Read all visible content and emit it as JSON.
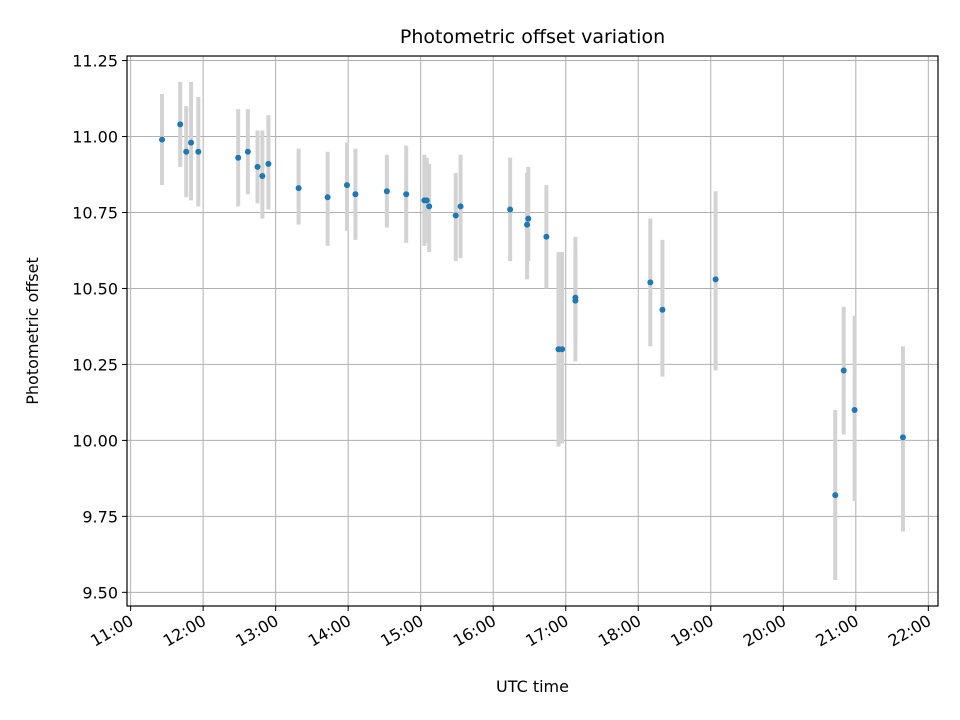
{
  "colors": {
    "point": "#1f77b4",
    "errorbar": "#d3d3d3",
    "grid": "#b0b0b0",
    "axes": "#000000"
  },
  "chart_data": {
    "type": "scatter",
    "title": "Photometric offset variation",
    "xlabel": "UTC time",
    "ylabel": "Photometric offset",
    "xlim": [
      "10:57",
      "22:08"
    ],
    "ylim": [
      9.455,
      11.265
    ],
    "grid": true,
    "xticks": [
      "11:00",
      "12:00",
      "13:00",
      "14:00",
      "15:00",
      "16:00",
      "17:00",
      "18:00",
      "19:00",
      "20:00",
      "21:00",
      "22:00"
    ],
    "yticks": [
      "9.50",
      "9.75",
      "10.00",
      "10.25",
      "10.50",
      "10.75",
      "11.00",
      "11.25"
    ],
    "series": [
      {
        "marker": "dot",
        "error": "vertical gray bars",
        "points": [
          {
            "x": "11:26",
            "y": 10.99,
            "lo": 10.84,
            "hi": 11.14
          },
          {
            "x": "11:41",
            "y": 11.04,
            "lo": 10.9,
            "hi": 11.18
          },
          {
            "x": "11:46",
            "y": 10.95,
            "lo": 10.8,
            "hi": 11.1
          },
          {
            "x": "11:50",
            "y": 10.98,
            "lo": 10.79,
            "hi": 11.18
          },
          {
            "x": "11:56",
            "y": 10.95,
            "lo": 10.77,
            "hi": 11.13
          },
          {
            "x": "12:29",
            "y": 10.93,
            "lo": 10.77,
            "hi": 11.09
          },
          {
            "x": "12:37",
            "y": 10.95,
            "lo": 10.81,
            "hi": 11.09
          },
          {
            "x": "12:45",
            "y": 10.9,
            "lo": 10.78,
            "hi": 11.02
          },
          {
            "x": "12:49",
            "y": 10.87,
            "lo": 10.73,
            "hi": 11.02
          },
          {
            "x": "12:54",
            "y": 10.91,
            "lo": 10.76,
            "hi": 11.07
          },
          {
            "x": "13:19",
            "y": 10.83,
            "lo": 10.71,
            "hi": 10.96
          },
          {
            "x": "13:43",
            "y": 10.8,
            "lo": 10.64,
            "hi": 10.95
          },
          {
            "x": "13:59",
            "y": 10.84,
            "lo": 10.69,
            "hi": 10.98
          },
          {
            "x": "14:06",
            "y": 10.81,
            "lo": 10.66,
            "hi": 10.96
          },
          {
            "x": "14:32",
            "y": 10.82,
            "lo": 10.7,
            "hi": 10.94
          },
          {
            "x": "14:48",
            "y": 10.81,
            "lo": 10.65,
            "hi": 10.97
          },
          {
            "x": "15:03",
            "y": 10.79,
            "lo": 10.64,
            "hi": 10.94
          },
          {
            "x": "15:05",
            "y": 10.79,
            "lo": 10.65,
            "hi": 10.93
          },
          {
            "x": "15:07",
            "y": 10.77,
            "lo": 10.62,
            "hi": 10.91
          },
          {
            "x": "15:29",
            "y": 10.74,
            "lo": 10.59,
            "hi": 10.88
          },
          {
            "x": "15:33",
            "y": 10.77,
            "lo": 10.6,
            "hi": 10.94
          },
          {
            "x": "16:14",
            "y": 10.76,
            "lo": 10.59,
            "hi": 10.93
          },
          {
            "x": "16:28",
            "y": 10.71,
            "lo": 10.53,
            "hi": 10.88
          },
          {
            "x": "16:29",
            "y": 10.73,
            "lo": 10.59,
            "hi": 10.9
          },
          {
            "x": "16:44",
            "y": 10.67,
            "lo": 10.5,
            "hi": 10.84
          },
          {
            "x": "16:54",
            "y": 10.3,
            "lo": 9.98,
            "hi": 10.62
          },
          {
            "x": "16:57",
            "y": 10.3,
            "lo": 9.99,
            "hi": 10.62
          },
          {
            "x": "17:08",
            "y": 10.46,
            "lo": 10.26,
            "hi": 10.67
          },
          {
            "x": "17:08",
            "y": 10.47,
            "lo": 10.33,
            "hi": 10.62
          },
          {
            "x": "18:10",
            "y": 10.52,
            "lo": 10.31,
            "hi": 10.73
          },
          {
            "x": "18:20",
            "y": 10.43,
            "lo": 10.21,
            "hi": 10.66
          },
          {
            "x": "19:04",
            "y": 10.53,
            "lo": 10.23,
            "hi": 10.82
          },
          {
            "x": "20:43",
            "y": 9.82,
            "lo": 9.54,
            "hi": 10.1
          },
          {
            "x": "20:50",
            "y": 10.23,
            "lo": 10.02,
            "hi": 10.44
          },
          {
            "x": "20:59",
            "y": 10.1,
            "lo": 9.8,
            "hi": 10.41
          },
          {
            "x": "21:39",
            "y": 10.01,
            "lo": 9.7,
            "hi": 10.31
          }
        ]
      }
    ]
  }
}
